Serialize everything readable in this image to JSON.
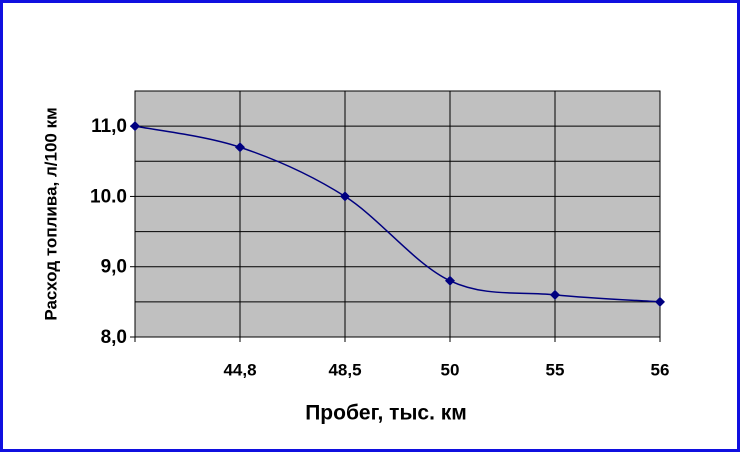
{
  "chart_data": {
    "type": "line",
    "x_label": "Пробег, тыс. км",
    "y_label": "Расход топлива, л/100 км",
    "categories": [
      null,
      "44,8",
      "48,5",
      "50",
      "55",
      "56"
    ],
    "series": [
      {
        "name": "Расход топлива",
        "color": "#000080",
        "values": [
          11.0,
          10.7,
          10.0,
          8.8,
          8.6,
          8.5
        ]
      }
    ],
    "ylim": [
      8,
      11.5
    ],
    "yticks": [
      {
        "value": 8,
        "label": "8,0"
      },
      {
        "value": 9,
        "label": "9,0"
      },
      {
        "value": 10,
        "label": "10.0"
      },
      {
        "value": 11,
        "label": "11,0"
      }
    ],
    "y_minor_gridlines": [
      8.5,
      9.5,
      10.5,
      11.5
    ],
    "grid": true,
    "plot_background": "#c0c0c0"
  }
}
